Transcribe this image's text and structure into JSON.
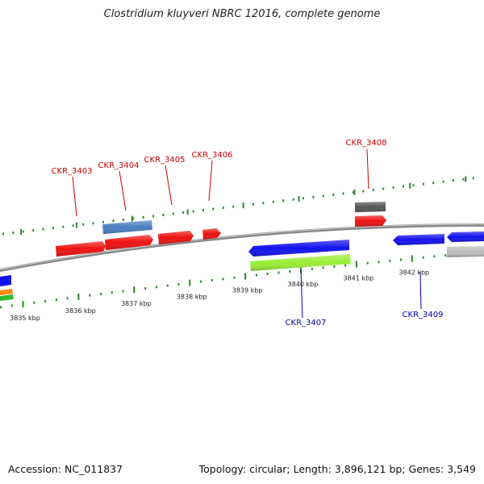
{
  "title": "Clostridium kluyveri NBRC 12016, complete genome",
  "footer": {
    "accession": "Accession: NC_011837",
    "summary": "Topology: circular; Length: 3,896,121 bp; Genes: 3,549"
  },
  "genome_map": {
    "scale_unit": "kbp",
    "scale_labels": [
      {
        "kbp": 3835,
        "text": "3835 kbp"
      },
      {
        "kbp": 3836,
        "text": "3836 kbp"
      },
      {
        "kbp": 3837,
        "text": "3837 kbp"
      },
      {
        "kbp": 3838,
        "text": "3838 kbp"
      },
      {
        "kbp": 3839,
        "text": "3839 kbp"
      },
      {
        "kbp": 3840,
        "text": "3840 kbp"
      },
      {
        "kbp": 3841,
        "text": "3841 kbp"
      },
      {
        "kbp": 3842,
        "text": "3842 kbp"
      }
    ],
    "colors": {
      "backbone": "#8a8a8a",
      "tick": "#2e8b2e",
      "label_red": "#cc0000",
      "label_blue": "#0000aa",
      "red": "#ee1111",
      "blue": "#1111ee",
      "steelblue": "#4a7fc0",
      "darkgray": "#555555",
      "lightgray": "#bbbbbb",
      "lime": "#99ee33",
      "orange": "#ff8800",
      "green": "#33bb33"
    },
    "gene_labels": [
      {
        "text": "CKR_3403",
        "color": "label_red"
      },
      {
        "text": "CKR_3404",
        "color": "label_red"
      },
      {
        "text": "CKR_3405",
        "color": "label_red"
      },
      {
        "text": "CKR_3406",
        "color": "label_red"
      },
      {
        "text": "CKR_3408",
        "color": "label_red"
      },
      {
        "text": "CKR_3407",
        "color": "label_blue"
      },
      {
        "text": "CKR_3409",
        "color": "label_blue"
      }
    ]
  }
}
